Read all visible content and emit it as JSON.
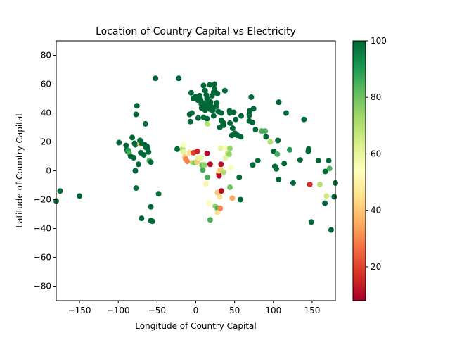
{
  "chart_data": {
    "type": "scatter",
    "title": "Location of Country Capital vs Electricity",
    "xlabel": "Longitude of Country Capital",
    "ylabel": "Latitude of Country Capital",
    "xlim": [
      -180,
      180
    ],
    "ylim": [
      -90,
      90
    ],
    "xticks": [
      -150,
      -100,
      -50,
      0,
      50,
      100,
      150
    ],
    "yticks": [
      -80,
      -60,
      -40,
      -20,
      0,
      20,
      40,
      60,
      80
    ],
    "grid": false,
    "colormap": "RdYlGn",
    "colorbar": {
      "min": 8,
      "max": 100,
      "ticks": [
        20,
        40,
        60,
        80,
        100
      ]
    },
    "points": [
      {
        "x": -180,
        "y": -21,
        "c": 100
      },
      {
        "x": -175,
        "y": -14,
        "c": 100
      },
      {
        "x": -150,
        "y": -17.5,
        "c": 100
      },
      {
        "x": -99,
        "y": 19.5,
        "c": 100
      },
      {
        "x": -90,
        "y": 17.5,
        "c": 100
      },
      {
        "x": -89,
        "y": 14.5,
        "c": 100
      },
      {
        "x": -88,
        "y": 13.5,
        "c": 95
      },
      {
        "x": -87,
        "y": 14,
        "c": 90
      },
      {
        "x": -86,
        "y": 12,
        "c": 85
      },
      {
        "x": -84,
        "y": 10,
        "c": 100
      },
      {
        "x": -82,
        "y": 23,
        "c": 100
      },
      {
        "x": -80,
        "y": 9,
        "c": 100
      },
      {
        "x": -79,
        "y": 19,
        "c": 100
      },
      {
        "x": -78,
        "y": 18,
        "c": 100
      },
      {
        "x": -78,
        "y": 0,
        "c": 100
      },
      {
        "x": -77,
        "y": 39,
        "c": 100
      },
      {
        "x": -77,
        "y": -12,
        "c": 100
      },
      {
        "x": -76,
        "y": 45,
        "c": 100
      },
      {
        "x": -74,
        "y": 4.5,
        "c": 100
      },
      {
        "x": -72,
        "y": 18.5,
        "c": 40
      },
      {
        "x": -72,
        "y": 21,
        "c": 100
      },
      {
        "x": -71,
        "y": 12.5,
        "c": 100
      },
      {
        "x": -70,
        "y": 19,
        "c": 100
      },
      {
        "x": -70,
        "y": -33,
        "c": 100
      },
      {
        "x": -67,
        "y": 11,
        "c": 100
      },
      {
        "x": -66,
        "y": 18,
        "c": 100
      },
      {
        "x": -65,
        "y": 32.5,
        "c": 100
      },
      {
        "x": -64,
        "y": 16,
        "c": 100
      },
      {
        "x": -63,
        "y": 17,
        "c": 100
      },
      {
        "x": -62,
        "y": 15,
        "c": 100
      },
      {
        "x": -61,
        "y": 13,
        "c": 100
      },
      {
        "x": -60,
        "y": 7,
        "c": 85
      },
      {
        "x": -58,
        "y": 6,
        "c": 100
      },
      {
        "x": -58,
        "y": -25,
        "c": 100
      },
      {
        "x": -58,
        "y": -34.5,
        "c": 100
      },
      {
        "x": -56,
        "y": -35,
        "c": 100
      },
      {
        "x": -52,
        "y": 64,
        "c": 100
      },
      {
        "x": -48,
        "y": -16,
        "c": 100
      },
      {
        "x": -22,
        "y": 64,
        "c": 100
      },
      {
        "x": -24,
        "y": 15,
        "c": 100
      },
      {
        "x": -17,
        "y": 15,
        "c": 70
      },
      {
        "x": -16,
        "y": 18,
        "c": 55
      },
      {
        "x": -16,
        "y": 13,
        "c": 60
      },
      {
        "x": -14,
        "y": 9.5,
        "c": 40
      },
      {
        "x": -13,
        "y": 8,
        "c": 30
      },
      {
        "x": -11,
        "y": 6.5,
        "c": 30
      },
      {
        "x": -8,
        "y": 12.5,
        "c": 45
      },
      {
        "x": -8,
        "y": 39,
        "c": 100
      },
      {
        "x": -7,
        "y": 34,
        "c": 100
      },
      {
        "x": -6,
        "y": 54,
        "c": 100
      },
      {
        "x": -5,
        "y": 40,
        "c": 100
      },
      {
        "x": -4,
        "y": 5.5,
        "c": 70
      },
      {
        "x": -3,
        "y": 12.5,
        "c": 20
      },
      {
        "x": -3,
        "y": 50,
        "c": 100
      },
      {
        "x": -1,
        "y": 5.5,
        "c": 80
      },
      {
        "x": 0,
        "y": 51.5,
        "c": 100
      },
      {
        "x": 1,
        "y": 6,
        "c": 70
      },
      {
        "x": 2,
        "y": 13.5,
        "c": 15
      },
      {
        "x": 2,
        "y": 6.5,
        "c": 40
      },
      {
        "x": 2.5,
        "y": 49,
        "c": 100
      },
      {
        "x": 3,
        "y": 36.5,
        "c": 100
      },
      {
        "x": 3,
        "y": 9,
        "c": 60
      },
      {
        "x": 4.5,
        "y": 51,
        "c": 100
      },
      {
        "x": 5,
        "y": 52,
        "c": 100
      },
      {
        "x": 6,
        "y": 49.5,
        "c": 100
      },
      {
        "x": 7,
        "y": 9,
        "c": 60
      },
      {
        "x": 7,
        "y": 46.5,
        "c": 100
      },
      {
        "x": 7.5,
        "y": 43.5,
        "c": 100
      },
      {
        "x": 8,
        "y": 4,
        "c": 80
      },
      {
        "x": 9,
        "y": 0.5,
        "c": 85
      },
      {
        "x": 9.5,
        "y": 47,
        "c": 100
      },
      {
        "x": 10,
        "y": 37,
        "c": 100
      },
      {
        "x": 10,
        "y": 59,
        "c": 100
      },
      {
        "x": 11,
        "y": 4,
        "c": 75
      },
      {
        "x": 12,
        "y": 42,
        "c": 100
      },
      {
        "x": 12,
        "y": 55.5,
        "c": 100
      },
      {
        "x": 12.5,
        "y": 44,
        "c": 100
      },
      {
        "x": 13,
        "y": -9,
        "c": 50
      },
      {
        "x": 13.5,
        "y": 52.5,
        "c": 100
      },
      {
        "x": 14.5,
        "y": 12,
        "c": 10
      },
      {
        "x": 14.5,
        "y": 36,
        "c": 100
      },
      {
        "x": 14.5,
        "y": 46,
        "c": 100
      },
      {
        "x": 14.5,
        "y": 50,
        "c": 100
      },
      {
        "x": 15,
        "y": 32.5,
        "c": 70
      },
      {
        "x": 15,
        "y": -4.5,
        "c": 85
      },
      {
        "x": 16,
        "y": 45.5,
        "c": 100
      },
      {
        "x": 16.5,
        "y": 48,
        "c": 100
      },
      {
        "x": 17,
        "y": -22.5,
        "c": 55
      },
      {
        "x": 17,
        "y": 48.5,
        "c": 100
      },
      {
        "x": 18,
        "y": 59.5,
        "c": 100
      },
      {
        "x": 18.5,
        "y": 4.5,
        "c": 10
      },
      {
        "x": 18.5,
        "y": -34,
        "c": 85
      },
      {
        "x": 19,
        "y": 47.5,
        "c": 100
      },
      {
        "x": 19,
        "y": 42.5,
        "c": 100
      },
      {
        "x": 20,
        "y": 44.5,
        "c": 100
      },
      {
        "x": 21,
        "y": 52,
        "c": 100
      },
      {
        "x": 21,
        "y": 42,
        "c": 100
      },
      {
        "x": 22,
        "y": 42,
        "c": 100
      },
      {
        "x": 23,
        "y": 38,
        "c": 100
      },
      {
        "x": 23,
        "y": 54.5,
        "c": 100
      },
      {
        "x": 24,
        "y": 56.5,
        "c": 100
      },
      {
        "x": 24,
        "y": 60,
        "c": 100
      },
      {
        "x": 25,
        "y": 54.5,
        "c": 100
      },
      {
        "x": 25,
        "y": -24.5,
        "c": 75
      },
      {
        "x": 26,
        "y": 44.5,
        "c": 100
      },
      {
        "x": 27,
        "y": 47,
        "c": 100
      },
      {
        "x": 28,
        "y": -26,
        "c": 85
      },
      {
        "x": 28,
        "y": -15,
        "c": 40
      },
      {
        "x": 28,
        "y": 53.5,
        "c": 100
      },
      {
        "x": 28,
        "y": -29,
        "c": 45
      },
      {
        "x": 29,
        "y": 41,
        "c": 100
      },
      {
        "x": 29.5,
        "y": -2,
        "c": 25
      },
      {
        "x": 30,
        "y": -3.5,
        "c": 10
      },
      {
        "x": 30,
        "y": 0,
        "c": 45
      },
      {
        "x": 31,
        "y": 30,
        "c": 100
      },
      {
        "x": 31,
        "y": -18,
        "c": 45
      },
      {
        "x": 31.5,
        "y": -26,
        "c": 30
      },
      {
        "x": 32,
        "y": 15.5,
        "c": 60
      },
      {
        "x": 32.5,
        "y": 0.5,
        "c": 40
      },
      {
        "x": 32.5,
        "y": 4.5,
        "c": 10
      },
      {
        "x": 33,
        "y": -14,
        "c": 10
      },
      {
        "x": 33,
        "y": 35,
        "c": 100
      },
      {
        "x": 33,
        "y": 40,
        "c": 100
      },
      {
        "x": 35,
        "y": 32,
        "c": 100
      },
      {
        "x": 35,
        "y": 33.5,
        "c": 100
      },
      {
        "x": 36,
        "y": 31.5,
        "c": 100
      },
      {
        "x": 36,
        "y": -1,
        "c": 70
      },
      {
        "x": 37.5,
        "y": 55.5,
        "c": 100
      },
      {
        "x": 38,
        "y": 9,
        "c": 60
      },
      {
        "x": 38.5,
        "y": 15.5,
        "c": 55
      },
      {
        "x": 41,
        "y": 12,
        "c": 65
      },
      {
        "x": 43,
        "y": 11.5,
        "c": 75
      },
      {
        "x": 43.5,
        "y": 41.5,
        "c": 100
      },
      {
        "x": 44,
        "y": 40,
        "c": 100
      },
      {
        "x": 44,
        "y": 33,
        "c": 100
      },
      {
        "x": 44,
        "y": 15.5,
        "c": 75
      },
      {
        "x": 44,
        "y": -11.5,
        "c": 80
      },
      {
        "x": 45,
        "y": 2,
        "c": 55
      },
      {
        "x": 46.5,
        "y": 24.5,
        "c": 100
      },
      {
        "x": 47,
        "y": -19,
        "c": 35
      },
      {
        "x": 47.5,
        "y": 29.5,
        "c": 100
      },
      {
        "x": 49,
        "y": 40.5,
        "c": 100
      },
      {
        "x": 50.5,
        "y": 26,
        "c": 100
      },
      {
        "x": 51.5,
        "y": 35.5,
        "c": 100
      },
      {
        "x": 51.5,
        "y": 25,
        "c": 100
      },
      {
        "x": 54,
        "y": 24.5,
        "c": 100
      },
      {
        "x": 56,
        "y": -4.5,
        "c": 100
      },
      {
        "x": 57.5,
        "y": -20,
        "c": 100
      },
      {
        "x": 58,
        "y": 23.5,
        "c": 100
      },
      {
        "x": 58.5,
        "y": 38,
        "c": 100
      },
      {
        "x": 69,
        "y": 34.5,
        "c": 100
      },
      {
        "x": 69.5,
        "y": 41.5,
        "c": 100
      },
      {
        "x": 69,
        "y": 38.5,
        "c": 100
      },
      {
        "x": 71.5,
        "y": 51,
        "c": 100
      },
      {
        "x": 73,
        "y": 33.5,
        "c": 100
      },
      {
        "x": 73.5,
        "y": 4,
        "c": 100
      },
      {
        "x": 74.5,
        "y": 43,
        "c": 100
      },
      {
        "x": 77,
        "y": 28.5,
        "c": 100
      },
      {
        "x": 80,
        "y": 7,
        "c": 100
      },
      {
        "x": 85,
        "y": 27.5,
        "c": 85
      },
      {
        "x": 89.5,
        "y": 27.5,
        "c": 85
      },
      {
        "x": 90.5,
        "y": 23.5,
        "c": 100
      },
      {
        "x": 96,
        "y": 20,
        "c": 70
      },
      {
        "x": 100.5,
        "y": 13.5,
        "c": 100
      },
      {
        "x": 102,
        "y": 3,
        "c": 100
      },
      {
        "x": 103.8,
        "y": 1.3,
        "c": 100
      },
      {
        "x": 105,
        "y": 11.5,
        "c": 85
      },
      {
        "x": 105.8,
        "y": 21,
        "c": 100
      },
      {
        "x": 106.8,
        "y": -6,
        "c": 100
      },
      {
        "x": 107,
        "y": 47.5,
        "c": 100
      },
      {
        "x": 114,
        "y": 5,
        "c": 100
      },
      {
        "x": 116.5,
        "y": 40,
        "c": 100
      },
      {
        "x": 121,
        "y": 14.5,
        "c": 90
      },
      {
        "x": 125.5,
        "y": -8.5,
        "c": 100
      },
      {
        "x": 134.5,
        "y": 7.5,
        "c": 100
      },
      {
        "x": 139.5,
        "y": 35.5,
        "c": 100
      },
      {
        "x": 145,
        "y": 13.5,
        "c": 100
      },
      {
        "x": 145.5,
        "y": 15,
        "c": 100
      },
      {
        "x": 147,
        "y": -9.5,
        "c": 15
      },
      {
        "x": 149,
        "y": -35.5,
        "c": 100
      },
      {
        "x": 158,
        "y": 7,
        "c": 100
      },
      {
        "x": 160,
        "y": -9.5,
        "c": 70
      },
      {
        "x": 166.5,
        "y": -22.5,
        "c": 100
      },
      {
        "x": 167,
        "y": -0.5,
        "c": 100
      },
      {
        "x": 168.5,
        "y": -17.5,
        "c": 65
      },
      {
        "x": 171.5,
        "y": 7,
        "c": 100
      },
      {
        "x": 172.5,
        "y": 1.5,
        "c": 85
      },
      {
        "x": 174.5,
        "y": -41,
        "c": 100
      },
      {
        "x": 178.5,
        "y": -18,
        "c": 100
      },
      {
        "x": 180,
        "y": -8.5,
        "c": 100
      }
    ]
  }
}
